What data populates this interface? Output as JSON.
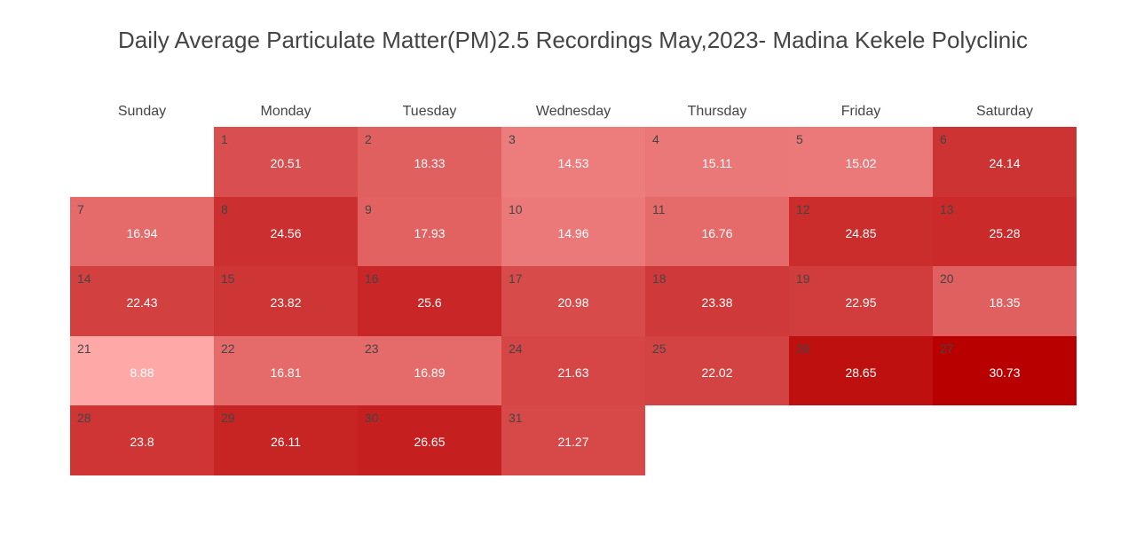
{
  "chart_data": {
    "type": "heatmap",
    "title": "Daily Average Particulate Matter(PM)2.5 Recordings May,2023- Madina Kekele Polyclinic",
    "weekdays": [
      "Sunday",
      "Monday",
      "Tuesday",
      "Wednesday",
      "Thursday",
      "Friday",
      "Saturday"
    ],
    "first_weekday_index": 1,
    "days": [
      {
        "day": "1",
        "value": 20.51
      },
      {
        "day": "2",
        "value": 18.33
      },
      {
        "day": "3",
        "value": 14.53
      },
      {
        "day": "4",
        "value": 15.11
      },
      {
        "day": "5",
        "value": 15.02
      },
      {
        "day": "6",
        "value": 24.14
      },
      {
        "day": "7",
        "value": 16.94
      },
      {
        "day": "8",
        "value": 24.56
      },
      {
        "day": "9",
        "value": 17.93
      },
      {
        "day": "10",
        "value": 14.96
      },
      {
        "day": "11",
        "value": 16.76
      },
      {
        "day": "12",
        "value": 24.85
      },
      {
        "day": "13",
        "value": 25.28
      },
      {
        "day": "14",
        "value": 22.43
      },
      {
        "day": "15",
        "value": 23.82
      },
      {
        "day": "16",
        "value": 25.6
      },
      {
        "day": "17",
        "value": 20.98
      },
      {
        "day": "18",
        "value": 23.38
      },
      {
        "day": "19",
        "value": 22.95
      },
      {
        "day": "20",
        "value": 18.35
      },
      {
        "day": "21",
        "value": 8.88
      },
      {
        "day": "22",
        "value": 16.81
      },
      {
        "day": "23",
        "value": 16.89
      },
      {
        "day": "24",
        "value": 21.63
      },
      {
        "day": "25",
        "value": 22.02
      },
      {
        "day": "26",
        "value": 28.65
      },
      {
        "day": "27",
        "value": 30.73
      },
      {
        "day": "28",
        "value": 23.8
      },
      {
        "day": "29",
        "value": 26.11
      },
      {
        "day": "30",
        "value": 26.65
      },
      {
        "day": "31",
        "value": 21.27
      }
    ],
    "color_scale": {
      "min_value": 8.88,
      "max_value": 30.73,
      "min_color": "#ffa8a8",
      "max_color": "#b80000"
    }
  }
}
